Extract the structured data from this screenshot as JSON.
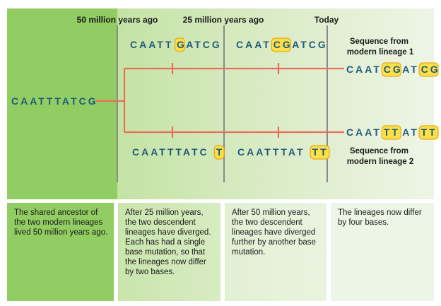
{
  "time_labels": {
    "t50": "50 million years ago",
    "t25": "25 million years ago",
    "today": "Today"
  },
  "ancestor_sequence": "CAATTTATCG",
  "upper_25mya": {
    "parts": [
      {
        "t": "CAATT",
        "h": false
      },
      {
        "t": "G",
        "h": true
      },
      {
        "t": "ATCG",
        "h": false
      }
    ]
  },
  "upper_mid": {
    "parts": [
      {
        "t": "CAAT",
        "h": false
      },
      {
        "t": "CG",
        "h": true
      },
      {
        "t": "ATCG",
        "h": false
      }
    ]
  },
  "upper_today": {
    "parts": [
      {
        "t": "CAAT",
        "h": false
      },
      {
        "t": "CG",
        "h": true
      },
      {
        "t": "AT",
        "h": false
      },
      {
        "t": "CG",
        "h": true
      }
    ]
  },
  "lower_25mya": {
    "parts": [
      {
        "t": "CAATTTATC",
        "h": false
      },
      {
        "t": "T",
        "h": true
      }
    ]
  },
  "lower_mid": {
    "parts": [
      {
        "t": "CAATTTAT",
        "h": false
      },
      {
        "t": "TT",
        "h": true
      }
    ]
  },
  "lower_today": {
    "parts": [
      {
        "t": "CAAT",
        "h": false
      },
      {
        "t": "TT",
        "h": true
      },
      {
        "t": "AT",
        "h": false
      },
      {
        "t": "TT",
        "h": true
      }
    ]
  },
  "lineage1_label": [
    "Sequence from",
    "modern lineage 1"
  ],
  "lineage2_label": [
    "Sequence from",
    "modern lineage 2"
  ],
  "captions": [
    "The shared ancestor of the two modern lineages lived 50 million years ago.",
    "After 25 million years, the two descendent lineages have diverged. Each has had a single base mutation, so that the lineages now differ by two bases.",
    "After 50 million years, the two descendent lineages have diverged further by another base mutation.",
    "The lineages now differ by four bases."
  ],
  "colors": {
    "panel1": "#91cd62",
    "panel_gradient_mid": "#c4e3a4",
    "panel_right": "#eaf3e2",
    "branch": "#ec6c5c",
    "highlight": "#fde047",
    "highlight_border": "#e8a91a",
    "sequence_text": "#1f5a7a",
    "divider": "#8a8a8a"
  }
}
